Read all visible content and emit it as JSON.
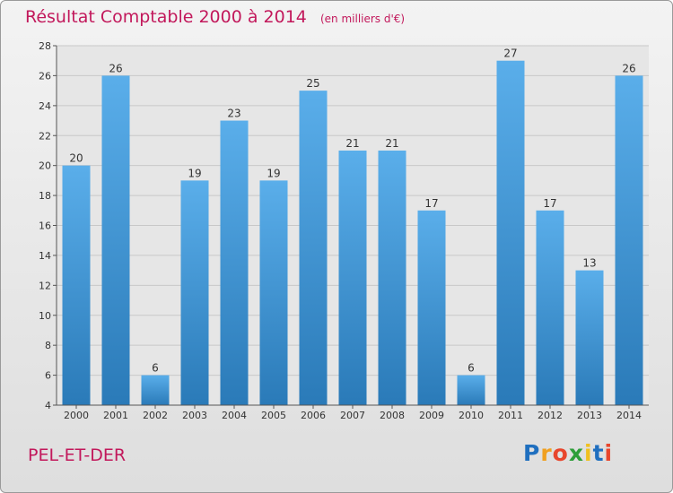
{
  "title": "Résultat Comptable 2000 à 2014",
  "unit": "(en milliers d'€)",
  "commune": "PEL-ET-DER",
  "brand": {
    "letters": [
      "P",
      "r",
      "o",
      "x",
      "i",
      "t",
      "i"
    ],
    "colors": [
      "#1f6fbf",
      "#f0a020",
      "#e8452c",
      "#2e9e3a",
      "#f0c020",
      "#1f6fbf",
      "#e8452c"
    ]
  },
  "colors": {
    "bar_light": "#5aaeea",
    "bar_dark": "#2a7ab8",
    "title": "#c2185b",
    "grid": "#c8c8c8"
  },
  "chart_data": {
    "type": "bar",
    "categories": [
      "2000",
      "2001",
      "2002",
      "2003",
      "2004",
      "2005",
      "2006",
      "2007",
      "2008",
      "2009",
      "2010",
      "2011",
      "2012",
      "2013",
      "2014"
    ],
    "values": [
      20,
      26,
      6,
      19,
      23,
      19,
      25,
      21,
      21,
      17,
      6,
      27,
      17,
      13,
      26
    ],
    "data_labels": [
      "20",
      "26",
      "6",
      "19",
      "23",
      "19",
      "25",
      "21",
      "21",
      "17",
      "6",
      "27",
      "17",
      "13",
      "26"
    ],
    "yticks": [
      "4",
      "6",
      "8",
      "10",
      "12",
      "14",
      "16",
      "18",
      "20",
      "22",
      "24",
      "26",
      "28"
    ],
    "ylim": [
      4,
      28
    ],
    "grid": true,
    "legend": "none"
  }
}
